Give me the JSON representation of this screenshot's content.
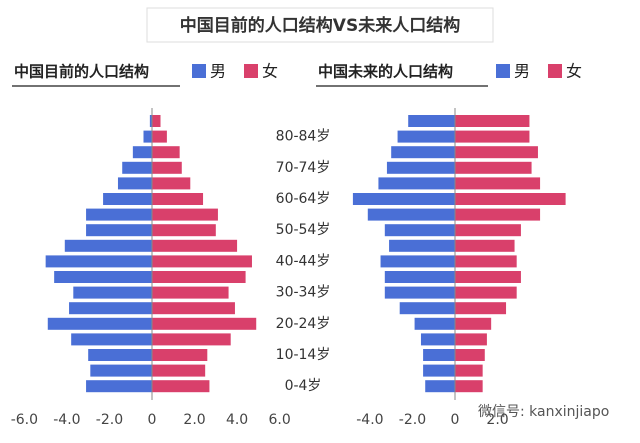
{
  "title": "中国目前的人口结构VS未来人口结构",
  "watermark": "微信号: kanxinjiapo",
  "chart_data": [
    {
      "type": "pyramid",
      "title": "中国目前的人口结构",
      "categories": [
        null,
        "80-84岁",
        null,
        "70-74岁",
        null,
        "60-64岁",
        null,
        "50-54岁",
        null,
        "40-44岁",
        null,
        "30-34岁",
        null,
        "20-24岁",
        null,
        "10-14岁",
        null,
        "0-4岁"
      ],
      "series": [
        {
          "name": "男",
          "color": "#4a6fd6",
          "values": [
            -0.1,
            -0.4,
            -0.9,
            -1.4,
            -1.6,
            -2.3,
            -3.1,
            -3.1,
            -4.1,
            -5.0,
            -4.6,
            -3.7,
            -3.9,
            -4.9,
            -3.8,
            -3.0,
            -2.9,
            -3.1
          ]
        },
        {
          "name": "女",
          "color": "#d9406b",
          "values": [
            0.4,
            0.7,
            1.3,
            1.4,
            1.8,
            2.4,
            3.1,
            3.0,
            4.0,
            4.7,
            4.4,
            3.6,
            3.9,
            4.9,
            3.7,
            2.6,
            2.5,
            2.7
          ]
        }
      ],
      "xlim": [
        -6.3,
        6.3
      ],
      "xticks": [
        {
          "value": -6,
          "label": "-6.0"
        },
        {
          "value": -4,
          "label": "-4.0"
        },
        {
          "value": -2,
          "label": "-2.0"
        },
        0,
        {
          "value": 2,
          "label": "2.0"
        },
        {
          "value": 4,
          "label": "4.0"
        },
        {
          "value": 6,
          "label": "6.0"
        }
      ],
      "grid": false
    },
    {
      "type": "pyramid",
      "title": "中国未来的人口结构",
      "series": [
        {
          "name": "男",
          "color": "#4a6fd6",
          "values": [
            -2.2,
            -2.7,
            -3.0,
            -3.2,
            -3.6,
            -4.8,
            -4.1,
            -3.3,
            -3.1,
            -3.5,
            -3.3,
            -3.3,
            -2.6,
            -1.9,
            -1.6,
            -1.5,
            -1.5,
            -1.4
          ]
        },
        {
          "name": "女",
          "color": "#d9406b",
          "values": [
            3.5,
            3.5,
            3.9,
            3.6,
            4.0,
            5.2,
            4.0,
            3.1,
            2.8,
            2.9,
            3.1,
            2.9,
            2.4,
            1.7,
            1.5,
            1.4,
            1.3,
            1.3
          ]
        }
      ],
      "xlim": [
        -6.3,
        6.3
      ],
      "xticks": [
        {
          "value": -4,
          "label": "-4.0"
        },
        {
          "value": -2,
          "label": "-2.0"
        },
        0,
        {
          "value": 2,
          "label": "2.0"
        }
      ],
      "grid": false
    }
  ]
}
